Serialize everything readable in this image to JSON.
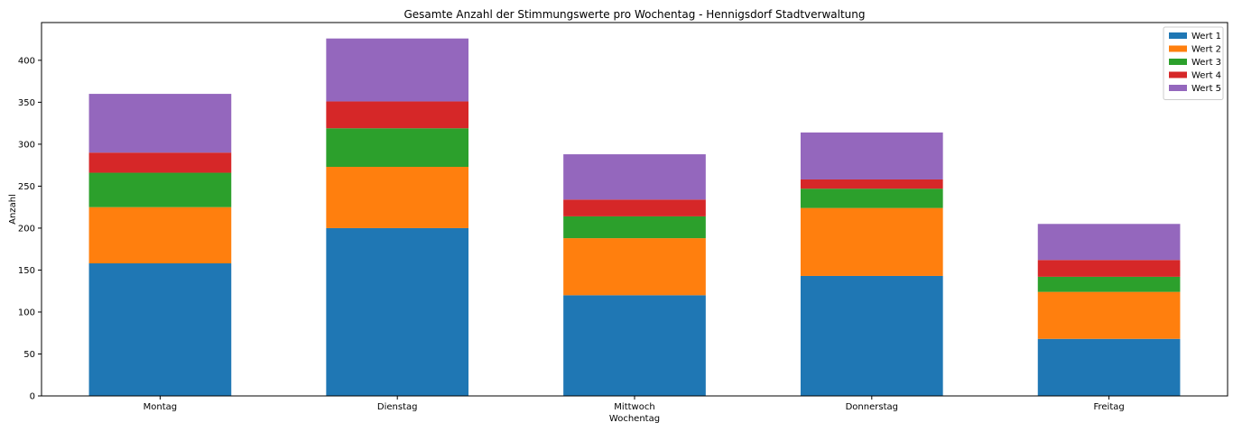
{
  "chart_data": {
    "type": "bar",
    "stacked": true,
    "title": "Gesamte Anzahl der Stimmungswerte pro Wochentag - Hennigsdorf Stadtverwaltung",
    "xlabel": "Wochentag",
    "ylabel": "Anzahl",
    "categories": [
      "Montag",
      "Dienstag",
      "Mittwoch",
      "Donnerstag",
      "Freitag"
    ],
    "ylim": [
      0,
      445
    ],
    "yticks": [
      0,
      50,
      100,
      150,
      200,
      250,
      300,
      350,
      400
    ],
    "legend_position": "top-right",
    "series": [
      {
        "name": "Wert 1",
        "color": "#1f77b4",
        "values": [
          158,
          200,
          120,
          143,
          68
        ]
      },
      {
        "name": "Wert 2",
        "color": "#ff7f0e",
        "values": [
          67,
          73,
          68,
          81,
          56
        ]
      },
      {
        "name": "Wert 3",
        "color": "#2ca02c",
        "values": [
          41,
          46,
          26,
          23,
          18
        ]
      },
      {
        "name": "Wert 4",
        "color": "#d62728",
        "values": [
          24,
          32,
          20,
          11,
          20
        ]
      },
      {
        "name": "Wert 5",
        "color": "#9467bd",
        "values": [
          70,
          75,
          54,
          56,
          43
        ]
      }
    ]
  }
}
